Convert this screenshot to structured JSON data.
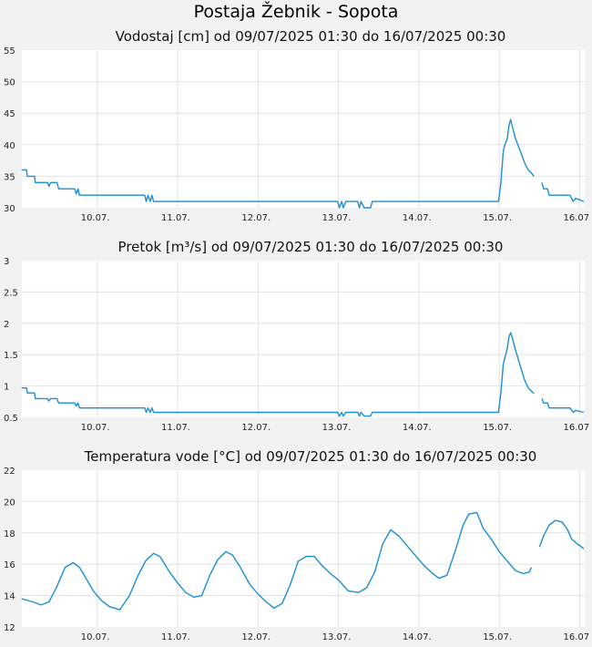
{
  "page_title": "Postaja Žebnik - Sopota",
  "colors": {
    "line": "#1a8fd6",
    "plot_background": "#ffffff",
    "page_background": "#f2f2f2"
  },
  "chart_data": [
    {
      "type": "line",
      "title": "Vodostaj [cm] od 09/07/2025 01:30 do 16/07/2025 00:30",
      "x_ticks": [
        "10.07.",
        "11.07.",
        "12.07.",
        "13.07.",
        "14.07.",
        "15.07.",
        "16.07"
      ],
      "x_range_days": [
        9.0625,
        16.0625
      ],
      "ylim": [
        30,
        55
      ],
      "y_ticks": [
        "30",
        "35",
        "40",
        "45",
        "50",
        "55"
      ],
      "grid": true,
      "series": [
        {
          "segments": [
            [
              [
                9.06,
                36
              ],
              [
                9.12,
                36
              ],
              [
                9.13,
                35
              ],
              [
                9.22,
                35
              ],
              [
                9.23,
                34
              ],
              [
                9.38,
                34
              ],
              [
                9.4,
                33.4
              ],
              [
                9.42,
                34
              ],
              [
                9.5,
                34
              ],
              [
                9.52,
                33
              ],
              [
                9.72,
                33
              ],
              [
                9.74,
                32.2
              ],
              [
                9.76,
                33
              ],
              [
                9.78,
                32
              ],
              [
                10.59,
                32
              ],
              [
                10.61,
                31
              ],
              [
                10.63,
                32
              ],
              [
                10.66,
                31
              ],
              [
                10.68,
                32
              ],
              [
                10.7,
                31
              ],
              [
                12.99,
                31
              ],
              [
                13.01,
                30
              ],
              [
                13.04,
                31
              ],
              [
                13.06,
                30
              ],
              [
                13.09,
                31
              ],
              [
                13.24,
                31
              ],
              [
                13.26,
                30
              ],
              [
                13.28,
                31
              ],
              [
                13.32,
                30
              ],
              [
                13.4,
                30
              ],
              [
                13.42,
                31
              ],
              [
                14.99,
                31
              ],
              [
                15.02,
                34
              ],
              [
                15.05,
                39
              ],
              [
                15.07,
                40
              ],
              [
                15.1,
                41
              ],
              [
                15.12,
                43
              ],
              [
                15.14,
                44
              ],
              [
                15.16,
                43
              ],
              [
                15.2,
                41
              ],
              [
                15.26,
                39
              ],
              [
                15.32,
                37
              ],
              [
                15.36,
                36
              ],
              [
                15.4,
                35.5
              ],
              [
                15.43,
                35
              ]
            ],
            [
              [
                15.53,
                34
              ],
              [
                15.55,
                33
              ],
              [
                15.6,
                33
              ],
              [
                15.62,
                32
              ],
              [
                15.88,
                32
              ],
              [
                15.92,
                31
              ],
              [
                15.95,
                31.5
              ],
              [
                16.05,
                31
              ]
            ]
          ]
        }
      ]
    },
    {
      "type": "line",
      "title": "Pretok [m³/s] od 09/07/2025 01:30 do 16/07/2025 00:30",
      "x_ticks": [
        "10.07.",
        "11.07.",
        "12.07.",
        "13.07.",
        "14.07.",
        "15.07.",
        "16.07"
      ],
      "x_range_days": [
        9.0625,
        16.0625
      ],
      "ylim": [
        0.5,
        3
      ],
      "y_ticks": [
        "0.5",
        "1",
        "1.5",
        "2",
        "2.5",
        "3"
      ],
      "grid": true,
      "series": [
        {
          "segments": [
            [
              [
                9.06,
                0.97
              ],
              [
                9.12,
                0.97
              ],
              [
                9.13,
                0.89
              ],
              [
                9.22,
                0.89
              ],
              [
                9.23,
                0.8
              ],
              [
                9.38,
                0.8
              ],
              [
                9.4,
                0.76
              ],
              [
                9.42,
                0.8
              ],
              [
                9.5,
                0.8
              ],
              [
                9.52,
                0.73
              ],
              [
                9.72,
                0.73
              ],
              [
                9.74,
                0.68
              ],
              [
                9.76,
                0.73
              ],
              [
                9.78,
                0.65
              ],
              [
                10.59,
                0.65
              ],
              [
                10.61,
                0.58
              ],
              [
                10.63,
                0.65
              ],
              [
                10.66,
                0.58
              ],
              [
                10.68,
                0.65
              ],
              [
                10.7,
                0.58
              ],
              [
                12.99,
                0.58
              ],
              [
                13.01,
                0.52
              ],
              [
                13.04,
                0.58
              ],
              [
                13.06,
                0.52
              ],
              [
                13.09,
                0.58
              ],
              [
                13.24,
                0.58
              ],
              [
                13.26,
                0.52
              ],
              [
                13.28,
                0.58
              ],
              [
                13.32,
                0.52
              ],
              [
                13.4,
                0.52
              ],
              [
                13.42,
                0.58
              ],
              [
                14.99,
                0.58
              ],
              [
                15.02,
                0.9
              ],
              [
                15.05,
                1.35
              ],
              [
                15.07,
                1.45
              ],
              [
                15.1,
                1.6
              ],
              [
                15.12,
                1.78
              ],
              [
                15.14,
                1.85
              ],
              [
                15.16,
                1.78
              ],
              [
                15.2,
                1.58
              ],
              [
                15.26,
                1.32
              ],
              [
                15.32,
                1.08
              ],
              [
                15.36,
                0.97
              ],
              [
                15.4,
                0.92
              ],
              [
                15.43,
                0.88
              ]
            ],
            [
              [
                15.53,
                0.8
              ],
              [
                15.55,
                0.73
              ],
              [
                15.6,
                0.73
              ],
              [
                15.62,
                0.65
              ],
              [
                15.88,
                0.65
              ],
              [
                15.92,
                0.58
              ],
              [
                15.95,
                0.61
              ],
              [
                16.05,
                0.58
              ]
            ]
          ]
        }
      ]
    },
    {
      "type": "line",
      "title": "Temperatura vode [°C] od 09/07/2025 01:30 do 16/07/2025 00:30",
      "x_ticks": [
        "10.07.",
        "11.07.",
        "12.07.",
        "13.07.",
        "14.07.",
        "15.07.",
        "16.07"
      ],
      "x_range_days": [
        9.0625,
        16.0625
      ],
      "ylim": [
        12,
        22
      ],
      "y_ticks": [
        "12",
        "14",
        "16",
        "18",
        "20",
        "22"
      ],
      "grid": true,
      "series": [
        {
          "segments": [
            [
              [
                9.06,
                13.8
              ],
              [
                9.2,
                13.6
              ],
              [
                9.3,
                13.4
              ],
              [
                9.4,
                13.6
              ],
              [
                9.5,
                14.6
              ],
              [
                9.6,
                15.8
              ],
              [
                9.7,
                16.1
              ],
              [
                9.78,
                15.8
              ],
              [
                9.85,
                15.2
              ],
              [
                9.95,
                14.3
              ],
              [
                10.05,
                13.7
              ],
              [
                10.15,
                13.3
              ],
              [
                10.28,
                13.1
              ],
              [
                10.4,
                14.0
              ],
              [
                10.5,
                15.2
              ],
              [
                10.6,
                16.2
              ],
              [
                10.7,
                16.7
              ],
              [
                10.78,
                16.5
              ],
              [
                10.9,
                15.5
              ],
              [
                11.0,
                14.8
              ],
              [
                11.1,
                14.2
              ],
              [
                11.2,
                13.9
              ],
              [
                11.3,
                14.0
              ],
              [
                11.4,
                15.3
              ],
              [
                11.5,
                16.3
              ],
              [
                11.6,
                16.8
              ],
              [
                11.68,
                16.6
              ],
              [
                11.78,
                15.8
              ],
              [
                11.9,
                14.7
              ],
              [
                12.0,
                14.1
              ],
              [
                12.1,
                13.6
              ],
              [
                12.2,
                13.2
              ],
              [
                12.3,
                13.5
              ],
              [
                12.4,
                14.7
              ],
              [
                12.5,
                16.2
              ],
              [
                12.6,
                16.5
              ],
              [
                12.7,
                16.5
              ],
              [
                12.78,
                16.0
              ],
              [
                12.9,
                15.4
              ],
              [
                13.0,
                15.0
              ],
              [
                13.12,
                14.3
              ],
              [
                13.25,
                14.2
              ],
              [
                13.35,
                14.5
              ],
              [
                13.45,
                15.5
              ],
              [
                13.55,
                17.3
              ],
              [
                13.65,
                18.2
              ],
              [
                13.75,
                17.8
              ],
              [
                13.85,
                17.2
              ],
              [
                13.95,
                16.6
              ],
              [
                14.05,
                16.0
              ],
              [
                14.15,
                15.5
              ],
              [
                14.25,
                15.1
              ],
              [
                14.35,
                15.3
              ],
              [
                14.45,
                16.8
              ],
              [
                14.55,
                18.5
              ],
              [
                14.62,
                19.2
              ],
              [
                14.72,
                19.3
              ],
              [
                14.8,
                18.3
              ],
              [
                14.9,
                17.6
              ],
              [
                15.0,
                16.8
              ],
              [
                15.1,
                16.2
              ],
              [
                15.2,
                15.6
              ],
              [
                15.3,
                15.4
              ],
              [
                15.37,
                15.5
              ],
              [
                15.4,
                15.8
              ]
            ],
            [
              [
                15.5,
                17.1
              ],
              [
                15.55,
                17.8
              ],
              [
                15.62,
                18.5
              ],
              [
                15.7,
                18.8
              ],
              [
                15.78,
                18.7
              ],
              [
                15.85,
                18.2
              ],
              [
                15.9,
                17.6
              ],
              [
                15.97,
                17.3
              ],
              [
                16.05,
                17.0
              ]
            ]
          ]
        }
      ]
    }
  ]
}
